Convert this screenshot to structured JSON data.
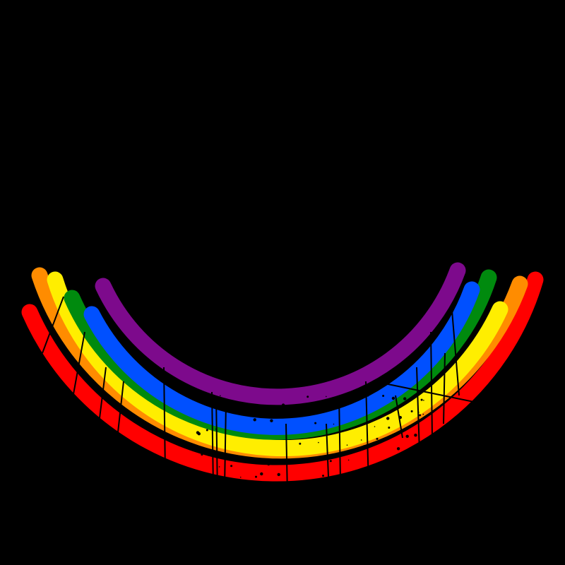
{
  "background_color": "#000000",
  "rainbow": {
    "orientation": "upside-down",
    "style": "distressed",
    "bands": [
      {
        "name": "red",
        "color": "#ff0000"
      },
      {
        "name": "orange",
        "color": "#ff8c00"
      },
      {
        "name": "yellow",
        "color": "#ffee00"
      },
      {
        "name": "green",
        "color": "#008a0e"
      },
      {
        "name": "blue",
        "color": "#0050ff"
      },
      {
        "name": "purple",
        "color": "#7d0a8c"
      }
    ]
  }
}
